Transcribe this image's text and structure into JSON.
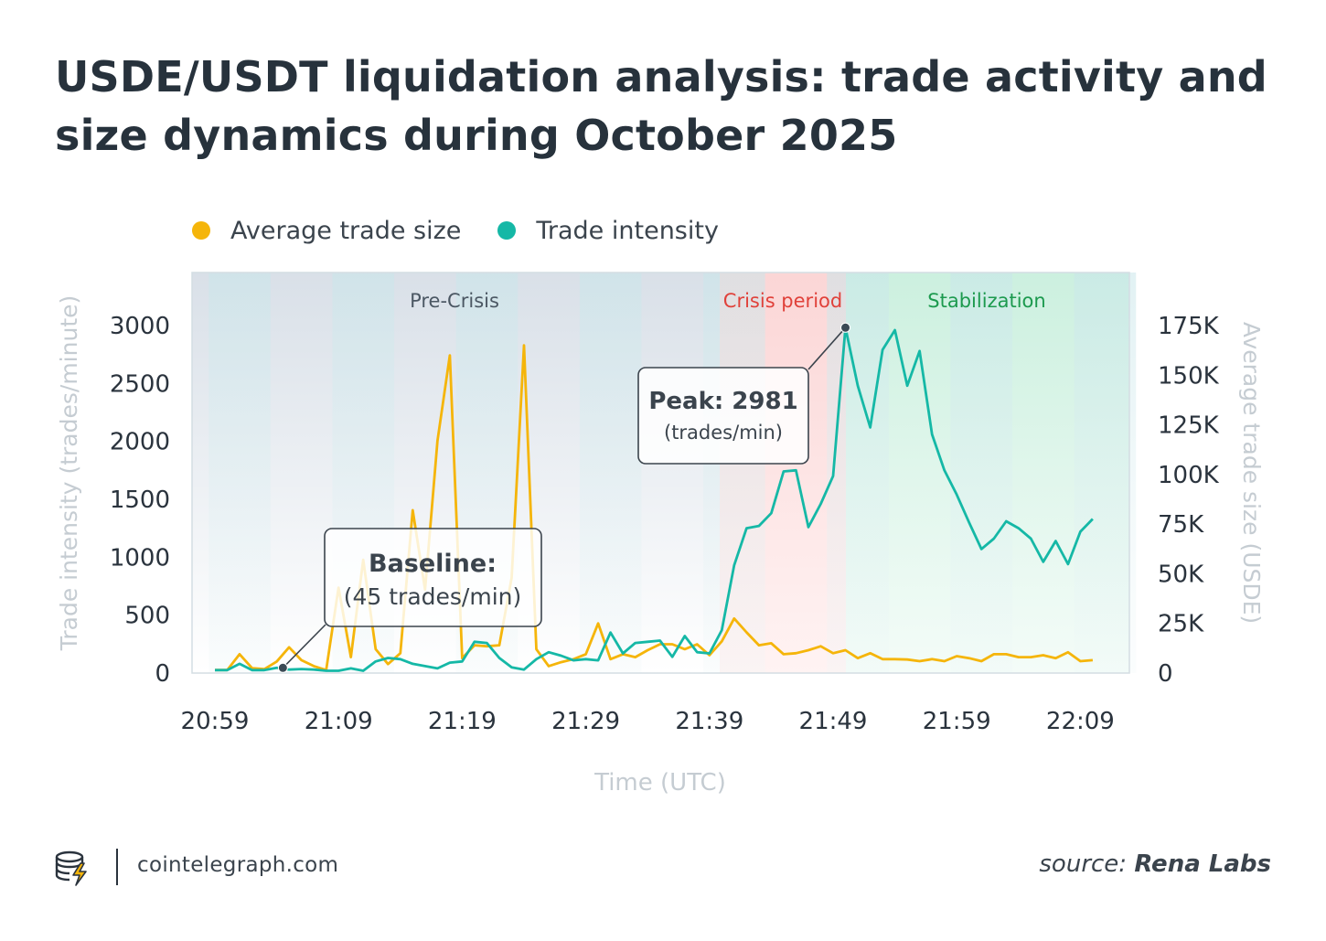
{
  "title": "USDE/USDT liquidation analysis: trade activity and size dynamics during October 2025",
  "footer": {
    "site": "cointelegraph.com",
    "source_prefix": "source:",
    "source_name": "Rena Labs"
  },
  "colors": {
    "trade_size": "#f5b50a",
    "trade_intensity": "#15b8a6",
    "text": "#2a333d",
    "axis_title": "#c5ccd2"
  },
  "chart_data": {
    "type": "line",
    "xlabel": "Time (UTC)",
    "ylabel_left": "Trade intensity (trades/minute)",
    "ylabel_right": "Average trade size (USDE)",
    "x_ticks": [
      "20:59",
      "21:09",
      "21:19",
      "21:29",
      "21:39",
      "21:49",
      "21:59",
      "22:09"
    ],
    "x_range_minutes": [
      -0.5,
      75.5
    ],
    "y_left_ticks": [
      "0",
      "500",
      "1000",
      "1500",
      "2000",
      "2500",
      "3000"
    ],
    "y_left_range": [
      0,
      3450
    ],
    "y_right_ticks": [
      "0",
      "25K",
      "50K",
      "75K",
      "100K",
      "125K",
      "150K",
      "175K"
    ],
    "y_right_range": [
      0,
      201250
    ],
    "regions": [
      {
        "label": "Pre-Crisis",
        "from": 21.0,
        "to": 21.0
      },
      {
        "label": "Crisis period",
        "from": 0,
        "to": 0
      },
      {
        "label": "Stabilization",
        "from": 0,
        "to": 0
      }
    ],
    "region_bounds": {
      "pre_crisis": [
        "20:59",
        "21:41"
      ],
      "crisis": [
        "21:41",
        "21:50"
      ],
      "stabilization": [
        "21:50",
        "22:09+"
      ]
    },
    "series": [
      {
        "name": "Average trade size",
        "axis": "right",
        "values": [
          1500,
          1500,
          9500,
          2500,
          2000,
          5800,
          13000,
          6500,
          3500,
          1500,
          43000,
          8000,
          57000,
          12000,
          4500,
          10000,
          82000,
          42000,
          117000,
          160000,
          7500,
          14000,
          13500,
          14000,
          48000,
          165000,
          12000,
          3500,
          5500,
          7000,
          9500,
          25000,
          7000,
          9500,
          8000,
          11500,
          14500,
          14500,
          12000,
          14500,
          9000,
          16000,
          27500,
          20500,
          14000,
          15000,
          9500,
          10000,
          11500,
          13500,
          10000,
          11500,
          7500,
          10000,
          7000,
          7000,
          6800,
          6000,
          7000,
          6000,
          8500,
          7500,
          6000,
          9500,
          9500,
          8000,
          8000,
          9000,
          7500,
          10500,
          6000,
          6500
        ],
        "note": "minute-by-minute from 20:59 to 22:10"
      },
      {
        "name": "Trade intensity",
        "axis": "left",
        "values": [
          25,
          25,
          80,
          25,
          25,
          45,
          30,
          35,
          30,
          20,
          20,
          40,
          20,
          100,
          130,
          120,
          80,
          60,
          40,
          90,
          100,
          270,
          260,
          130,
          50,
          30,
          120,
          180,
          150,
          110,
          120,
          110,
          350,
          170,
          260,
          270,
          280,
          140,
          320,
          180,
          170,
          370,
          930,
          1250,
          1270,
          1380,
          1740,
          1750,
          1260,
          1460,
          1700,
          2981,
          2480,
          2120,
          2790,
          2960,
          2480,
          2780,
          2060,
          1750,
          1540,
          1300,
          1070,
          1160,
          1310,
          1250,
          1160,
          960,
          1140,
          940,
          1220,
          1330
        ],
        "note": "minute-by-minute from 20:59 to 22:10"
      }
    ],
    "annotations": [
      {
        "label": "Baseline:",
        "sublabel": "(45 trades/min)",
        "time": "21:04",
        "value": 45
      },
      {
        "label": "Peak: 2981",
        "sublabel": "(trades/min)",
        "time": "21:50",
        "value": 2981
      }
    ]
  }
}
